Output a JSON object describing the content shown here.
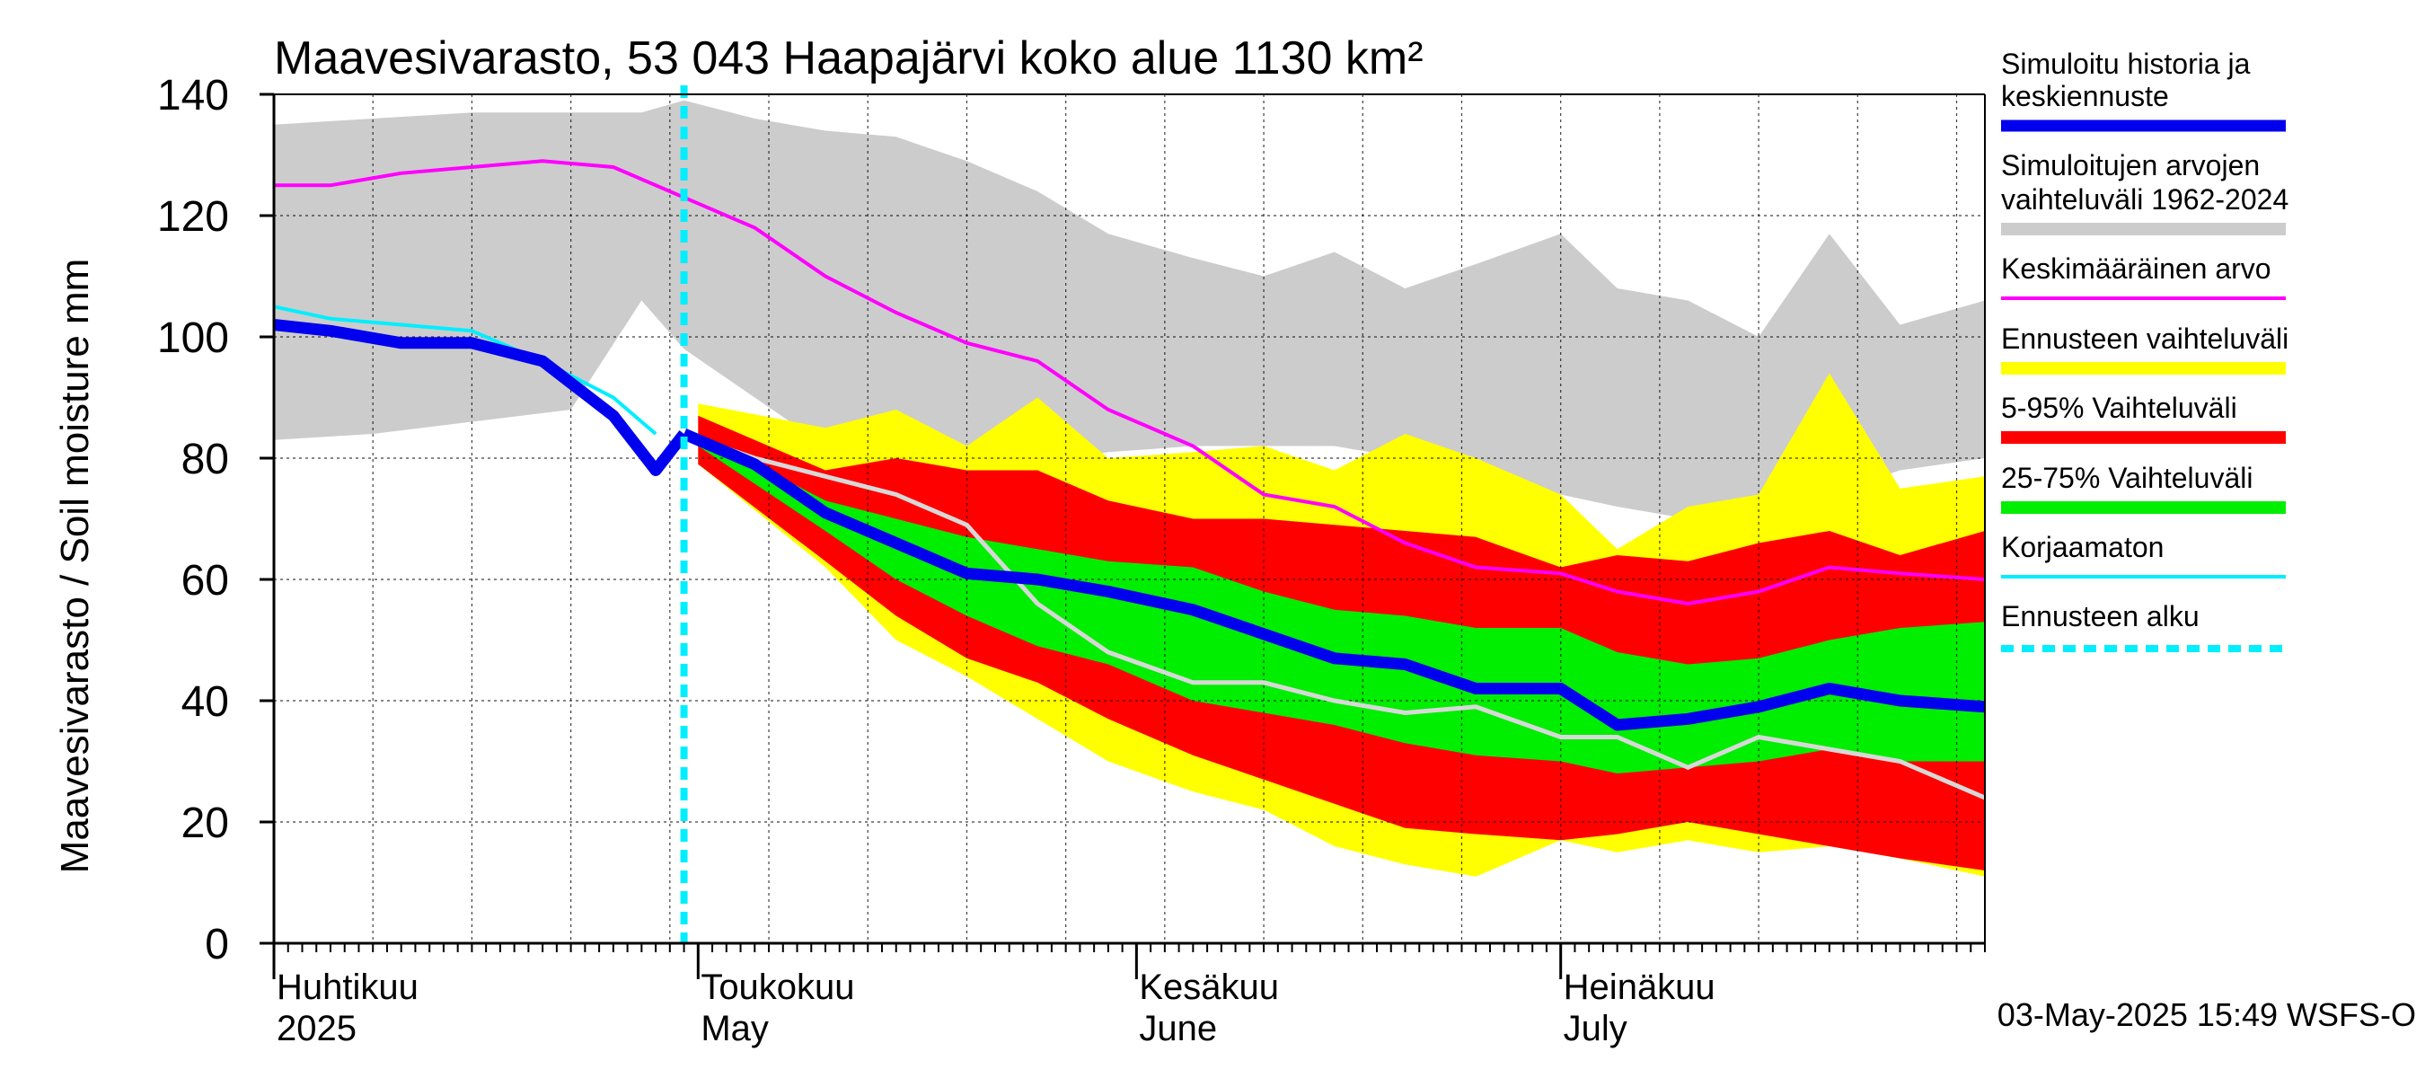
{
  "chart_data": {
    "type": "area",
    "title": "Maavesivarasto, 53 043 Haapajärvi koko alue 1130 km²",
    "ylabel": "Maavesivarasto / Soil moisture   mm",
    "ylim": [
      0,
      140
    ],
    "yticks": [
      0,
      20,
      40,
      60,
      80,
      100,
      120,
      140
    ],
    "x_range": [
      "2025-04-01",
      "2025-07-31"
    ],
    "grid": true,
    "legend_position": "right",
    "month_labels": [
      {
        "fi": "Huhtikuu",
        "en": "2025",
        "date": "2025-04-01"
      },
      {
        "fi": "Toukokuu",
        "en": "May",
        "date": "2025-05-01"
      },
      {
        "fi": "Kesäkuu",
        "en": "June",
        "date": "2025-06-01"
      },
      {
        "fi": "Heinäkuu",
        "en": "July",
        "date": "2025-07-01"
      }
    ],
    "forecast_start": "2025-04-30",
    "footer": "03-May-2025 15:49 WSFS-O",
    "legend": [
      {
        "label": "Simuloitu historia ja keskiennuste",
        "color": "#0000ee",
        "style": "line-thick"
      },
      {
        "label": "Simuloitujen arvojen vaihteluväli 1962-2024",
        "color": "#cccccc",
        "style": "band"
      },
      {
        "label": "Keskimääräinen arvo",
        "color": "#ff00ff",
        "style": "line"
      },
      {
        "label": "Ennusteen vaihteluväli",
        "color": "#ffff00",
        "style": "band"
      },
      {
        "label": "5-95% Vaihteluväli",
        "color": "#ff0000",
        "style": "band"
      },
      {
        "label": "25-75% Vaihteluväli",
        "color": "#00ee00",
        "style": "band"
      },
      {
        "label": "Korjaamaton",
        "color": "#00eeff",
        "style": "line"
      },
      {
        "label": "Ennusteen alku",
        "color": "#00eeff",
        "style": "dashed"
      }
    ],
    "series": {
      "hist_range": {
        "x": [
          "2025-04-01",
          "2025-04-08",
          "2025-04-15",
          "2025-04-22",
          "2025-04-27",
          "2025-04-30",
          "2025-05-05",
          "2025-05-10",
          "2025-05-15",
          "2025-05-20",
          "2025-05-25",
          "2025-05-30",
          "2025-06-05",
          "2025-06-10",
          "2025-06-15",
          "2025-06-20",
          "2025-06-25",
          "2025-07-01",
          "2025-07-05",
          "2025-07-10",
          "2025-07-15",
          "2025-07-20",
          "2025-07-25",
          "2025-07-31"
        ],
        "upper": [
          135,
          136,
          137,
          137,
          137,
          139,
          136,
          134,
          133,
          129,
          124,
          117,
          113,
          110,
          114,
          108,
          112,
          117,
          108,
          106,
          100,
          117,
          102,
          106
        ],
        "lower": [
          83,
          84,
          86,
          88,
          106,
          98,
          90,
          82,
          80,
          78,
          79,
          81,
          82,
          82,
          82,
          80,
          76,
          74,
          72,
          70,
          70,
          74,
          78,
          80
        ]
      },
      "mean": {
        "x": [
          "2025-04-01",
          "2025-04-05",
          "2025-04-10",
          "2025-04-15",
          "2025-04-20",
          "2025-04-25",
          "2025-04-30",
          "2025-05-05",
          "2025-05-10",
          "2025-05-15",
          "2025-05-20",
          "2025-05-25",
          "2025-05-30",
          "2025-06-05",
          "2025-06-10",
          "2025-06-15",
          "2025-06-20",
          "2025-06-25",
          "2025-07-01",
          "2025-07-05",
          "2025-07-10",
          "2025-07-15",
          "2025-07-20",
          "2025-07-25",
          "2025-07-31"
        ],
        "values": [
          125,
          125,
          127,
          128,
          129,
          128,
          123,
          118,
          110,
          104,
          99,
          96,
          88,
          82,
          74,
          72,
          66,
          62,
          61,
          58,
          56,
          58,
          62,
          61,
          60
        ]
      },
      "simulated_history": {
        "x": [
          "2025-04-01",
          "2025-04-05",
          "2025-04-10",
          "2025-04-15",
          "2025-04-20",
          "2025-04-25",
          "2025-04-28",
          "2025-04-30"
        ],
        "values": [
          102,
          101,
          99,
          99,
          96,
          87,
          78,
          84
        ]
      },
      "uncorrected": {
        "x": [
          "2025-04-01",
          "2025-04-05",
          "2025-04-10",
          "2025-04-15",
          "2025-04-20",
          "2025-04-25",
          "2025-04-28"
        ],
        "values": [
          105,
          103,
          102,
          101,
          96,
          90,
          84
        ]
      },
      "median_forecast": {
        "x": [
          "2025-04-30",
          "2025-05-05",
          "2025-05-10",
          "2025-05-15",
          "2025-05-20",
          "2025-05-25",
          "2025-05-30",
          "2025-06-05",
          "2025-06-10",
          "2025-06-15",
          "2025-06-20",
          "2025-06-25",
          "2025-07-01",
          "2025-07-05",
          "2025-07-10",
          "2025-07-15",
          "2025-07-20",
          "2025-07-25",
          "2025-07-31"
        ],
        "values": [
          84,
          79,
          71,
          66,
          61,
          60,
          58,
          55,
          51,
          47,
          46,
          42,
          42,
          36,
          37,
          39,
          42,
          40,
          39
        ]
      },
      "uncorrected_forecast": {
        "x": [
          "2025-04-30",
          "2025-05-05",
          "2025-05-10",
          "2025-05-15",
          "2025-05-20",
          "2025-05-25",
          "2025-05-30",
          "2025-06-05",
          "2025-06-10",
          "2025-06-15",
          "2025-06-20",
          "2025-06-25",
          "2025-07-01",
          "2025-07-05",
          "2025-07-10",
          "2025-07-15",
          "2025-07-20",
          "2025-07-25",
          "2025-07-31"
        ],
        "values": [
          84,
          80,
          77,
          74,
          69,
          56,
          48,
          43,
          43,
          40,
          38,
          39,
          34,
          34,
          29,
          34,
          32,
          30,
          24
        ]
      },
      "forecast_range": {
        "x": [
          "2025-05-01",
          "2025-05-10",
          "2025-05-15",
          "2025-05-20",
          "2025-05-25",
          "2025-05-30",
          "2025-06-05",
          "2025-06-10",
          "2025-06-15",
          "2025-06-20",
          "2025-06-25",
          "2025-07-01",
          "2025-07-05",
          "2025-07-10",
          "2025-07-15",
          "2025-07-20",
          "2025-07-25",
          "2025-07-31"
        ],
        "upper": [
          89,
          85,
          88,
          82,
          90,
          80,
          81,
          82,
          78,
          84,
          80,
          74,
          65,
          72,
          74,
          94,
          75,
          77
        ],
        "lower": [
          79,
          62,
          50,
          44,
          37,
          30,
          25,
          22,
          16,
          13,
          11,
          17,
          15,
          17,
          15,
          16,
          14,
          11
        ]
      },
      "p5_95": {
        "x": [
          "2025-05-01",
          "2025-05-10",
          "2025-05-15",
          "2025-05-20",
          "2025-05-25",
          "2025-05-30",
          "2025-06-05",
          "2025-06-10",
          "2025-06-15",
          "2025-06-20",
          "2025-06-25",
          "2025-07-01",
          "2025-07-05",
          "2025-07-10",
          "2025-07-15",
          "2025-07-20",
          "2025-07-25",
          "2025-07-31"
        ],
        "upper": [
          87,
          78,
          80,
          78,
          78,
          73,
          70,
          70,
          69,
          68,
          67,
          62,
          64,
          63,
          66,
          68,
          64,
          68
        ],
        "lower": [
          79,
          63,
          54,
          47,
          43,
          37,
          31,
          27,
          23,
          19,
          18,
          17,
          18,
          20,
          18,
          16,
          14,
          12
        ]
      },
      "p25_75": {
        "x": [
          "2025-05-01",
          "2025-05-10",
          "2025-05-15",
          "2025-05-20",
          "2025-05-25",
          "2025-05-30",
          "2025-06-05",
          "2025-06-10",
          "2025-06-15",
          "2025-06-20",
          "2025-06-25",
          "2025-07-01",
          "2025-07-05",
          "2025-07-10",
          "2025-07-15",
          "2025-07-20",
          "2025-07-25",
          "2025-07-31"
        ],
        "upper": [
          84,
          73,
          70,
          67,
          65,
          63,
          62,
          58,
          55,
          54,
          52,
          52,
          48,
          46,
          47,
          50,
          52,
          53
        ],
        "lower": [
          82,
          68,
          60,
          54,
          49,
          46,
          40,
          38,
          36,
          33,
          31,
          30,
          28,
          29,
          30,
          32,
          30,
          30
        ]
      }
    }
  }
}
